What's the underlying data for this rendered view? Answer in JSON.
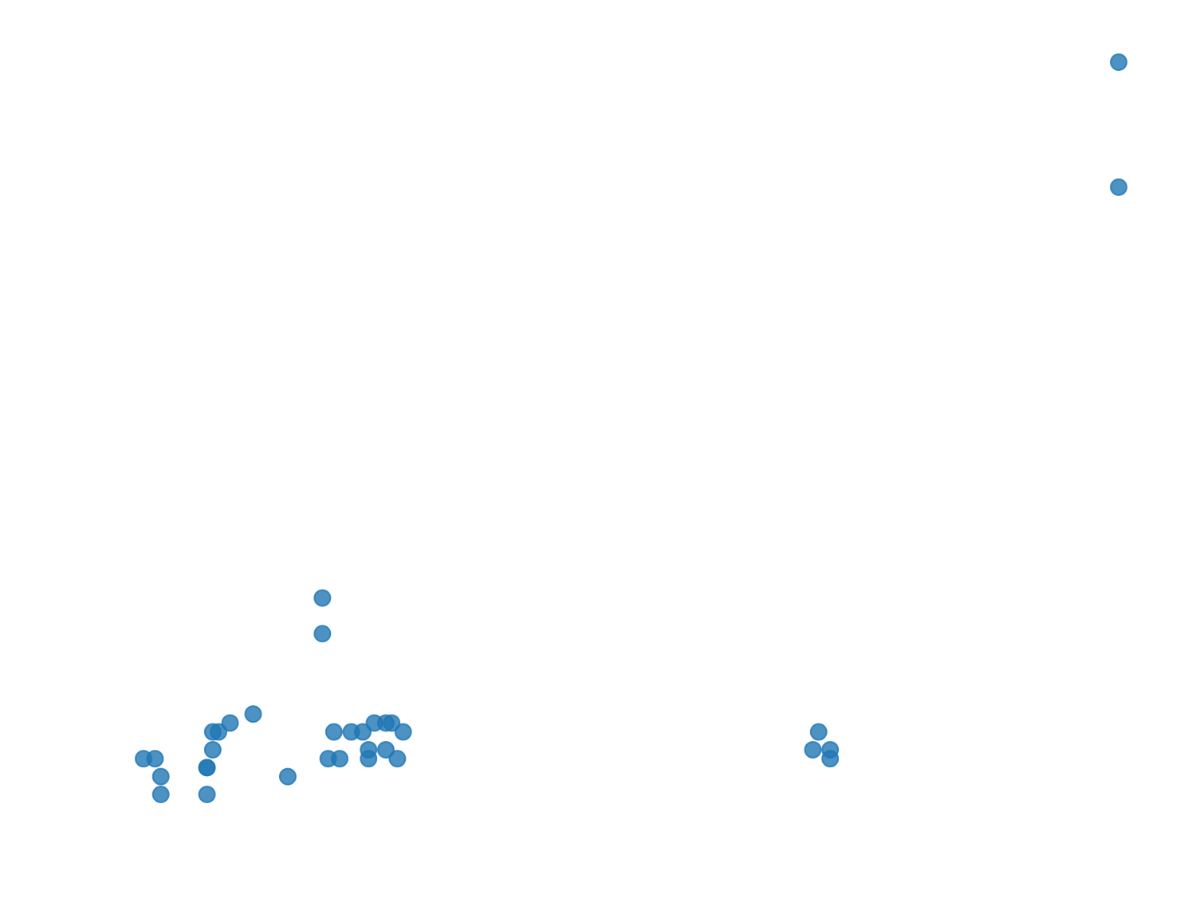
{
  "chart_data": {
    "type": "scatter",
    "title": "",
    "xlabel": "",
    "ylabel": "",
    "grid": false,
    "legend": "none",
    "axes_visible": false,
    "xlim": [
      0,
      100
    ],
    "ylim": [
      0,
      100
    ],
    "marker_color": "#1f77b4",
    "marker_opacity": 0.8,
    "series": [
      {
        "x": [
          0.0,
          1.0,
          1.5,
          1.5,
          5.5,
          5.5,
          5.5,
          6.0,
          6.0,
          6.5,
          7.5,
          9.5,
          12.5,
          15.5,
          15.5,
          16.0,
          16.5,
          17.0,
          18.0,
          19.0,
          19.5,
          19.5,
          20.0,
          21.0,
          21.0,
          21.5,
          22.0,
          22.5,
          58.0,
          58.5,
          59.5,
          59.5,
          84.5,
          84.5
        ],
        "y": [
          2.0,
          2.0,
          1.0,
          0.0,
          0.0,
          1.5,
          1.5,
          2.5,
          3.5,
          3.5,
          4.0,
          4.5,
          1.0,
          9.0,
          11.0,
          2.0,
          3.5,
          2.0,
          3.5,
          3.5,
          2.5,
          2.0,
          4.0,
          2.5,
          4.0,
          4.0,
          2.0,
          3.5,
          2.5,
          3.5,
          2.5,
          2.0,
          34.0,
          41.0
        ]
      }
    ]
  }
}
